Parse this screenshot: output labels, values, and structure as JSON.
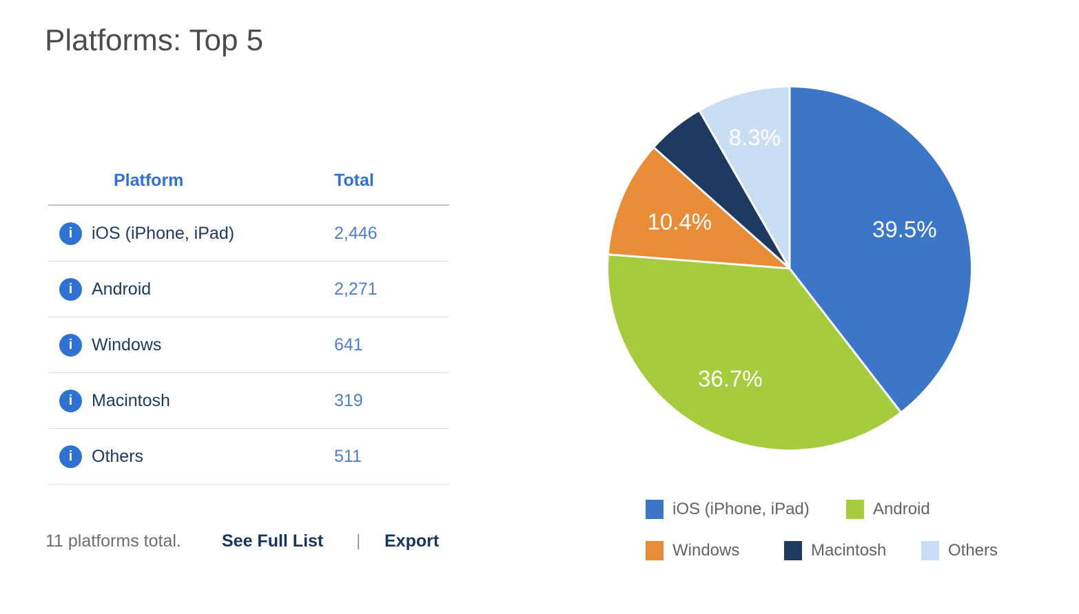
{
  "title": "Platforms: Top 5",
  "table": {
    "columns": {
      "platform": "Platform",
      "total": "Total"
    },
    "rows": [
      {
        "platform": "iOS (iPhone, iPad)",
        "total": "2,446"
      },
      {
        "platform": "Android",
        "total": "2,271"
      },
      {
        "platform": "Windows",
        "total": "641"
      },
      {
        "platform": "Macintosh",
        "total": "319"
      },
      {
        "platform": "Others",
        "total": "511"
      }
    ],
    "row_icon": "info-icon",
    "row_icon_glyph": "i"
  },
  "footer": {
    "summary": "11 platforms total.",
    "see_full_list": "See Full List",
    "separator": "|",
    "export": "Export"
  },
  "chart_data": {
    "type": "pie",
    "title": "",
    "labels": [
      "iOS (iPhone, iPad)",
      "Android",
      "Windows",
      "Macintosh",
      "Others"
    ],
    "values": [
      2446,
      2271,
      641,
      319,
      511
    ],
    "percentages": [
      39.5,
      36.7,
      10.4,
      5.2,
      8.3
    ],
    "percent_labels": [
      "39.5%",
      "36.7%",
      "10.4%",
      "",
      "8.3%"
    ],
    "colors": [
      "#3b76c9",
      "#a5cc3d",
      "#e98c37",
      "#1e3a60",
      "#c9ddf3"
    ],
    "start_angle_deg": -90,
    "direction": "clockwise",
    "slice_separator_color": "#ffffff",
    "label_color": "#ffffff",
    "legend_position": "bottom"
  },
  "ui_colors": {
    "header_text": "#2e70d4",
    "row_label": "#1d3a63",
    "row_value": "#4d7fd0",
    "info_icon_bg": "#2f72d2",
    "link_text": "#16355f",
    "muted_text": "#6d6d6d",
    "title_text": "#4c4c50",
    "legend_text": "#5f6368"
  }
}
